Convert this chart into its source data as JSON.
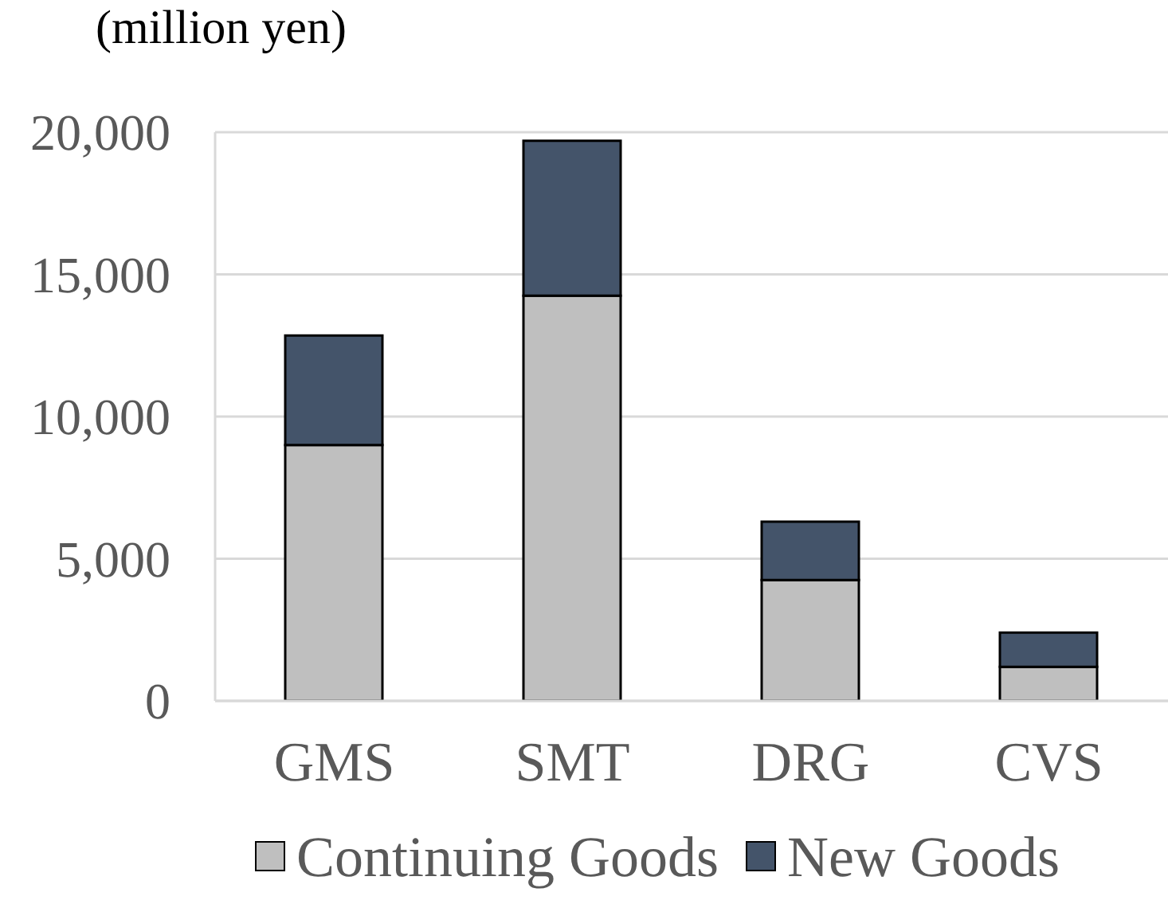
{
  "chart_data": {
    "type": "bar",
    "ylabel": "(million yen)",
    "categories": [
      "GMS",
      "SMT",
      "DRG",
      "CVS"
    ],
    "stacked": true,
    "series": [
      {
        "name": "Continuing Goods",
        "color": "#bfbfbf",
        "values": [
          9000,
          14250,
          4250,
          1200
        ]
      },
      {
        "name": "New Goods",
        "color": "#44546a",
        "values": [
          3850,
          5450,
          2050,
          1200
        ]
      }
    ],
    "ylim": [
      0,
      20000
    ],
    "yticks": [
      {
        "value": 0,
        "label": "0"
      },
      {
        "value": 5000,
        "label": "5,000"
      },
      {
        "value": 10000,
        "label": "10,000"
      },
      {
        "value": 15000,
        "label": "15,000"
      },
      {
        "value": 20000,
        "label": "20,000"
      }
    ],
    "grid": "y",
    "legend": "bottom"
  }
}
